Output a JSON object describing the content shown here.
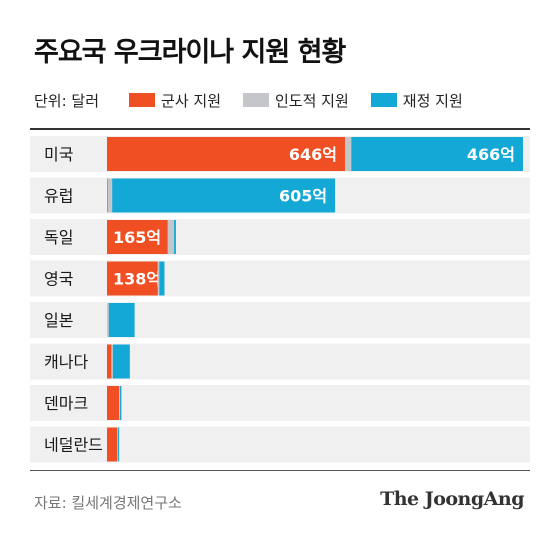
{
  "title": "주요국 우크라이나 지원 현황",
  "unit_label": "단위: 달러",
  "source": "자료: 킬세계경제연구소",
  "brand": "The JoongAng",
  "colors": {
    "military": "#f04e23",
    "humanitarian": "#c4c6c9",
    "financial": "#14a8d6",
    "row_bg": "#f0f0f0"
  },
  "chart_data": {
    "type": "bar",
    "orientation": "horizontal",
    "stacked": true,
    "title": "주요국 우크라이나 지원 현황",
    "unit": "억 달러",
    "categories": [
      "미국",
      "유럽",
      "독일",
      "영국",
      "일본",
      "캐나다",
      "덴마크",
      "네덜란드"
    ],
    "series": [
      {
        "name": "군사 지원",
        "color_key": "military",
        "values": [
          646,
          2,
          165,
          138,
          0,
          12,
          33,
          28
        ]
      },
      {
        "name": "인도적 지원",
        "color_key": "humanitarian",
        "values": [
          17,
          12,
          17,
          4,
          5,
          4,
          2,
          2
        ]
      },
      {
        "name": "재정 지원",
        "color_key": "financial",
        "values": [
          466,
          605,
          5,
          14,
          70,
          46,
          4,
          3
        ]
      }
    ],
    "data_labels": [
      {
        "category": "미국",
        "series": "군사 지원",
        "text": "646억"
      },
      {
        "category": "미국",
        "series": "재정 지원",
        "text": "466억"
      },
      {
        "category": "유럽",
        "series": "재정 지원",
        "text": "605억"
      },
      {
        "category": "독일",
        "series": "군사 지원",
        "text": "165억"
      },
      {
        "category": "영국",
        "series": "군사 지원",
        "text": "138억"
      }
    ],
    "xlim": [
      0,
      1129
    ],
    "legend_position": "top-left"
  }
}
